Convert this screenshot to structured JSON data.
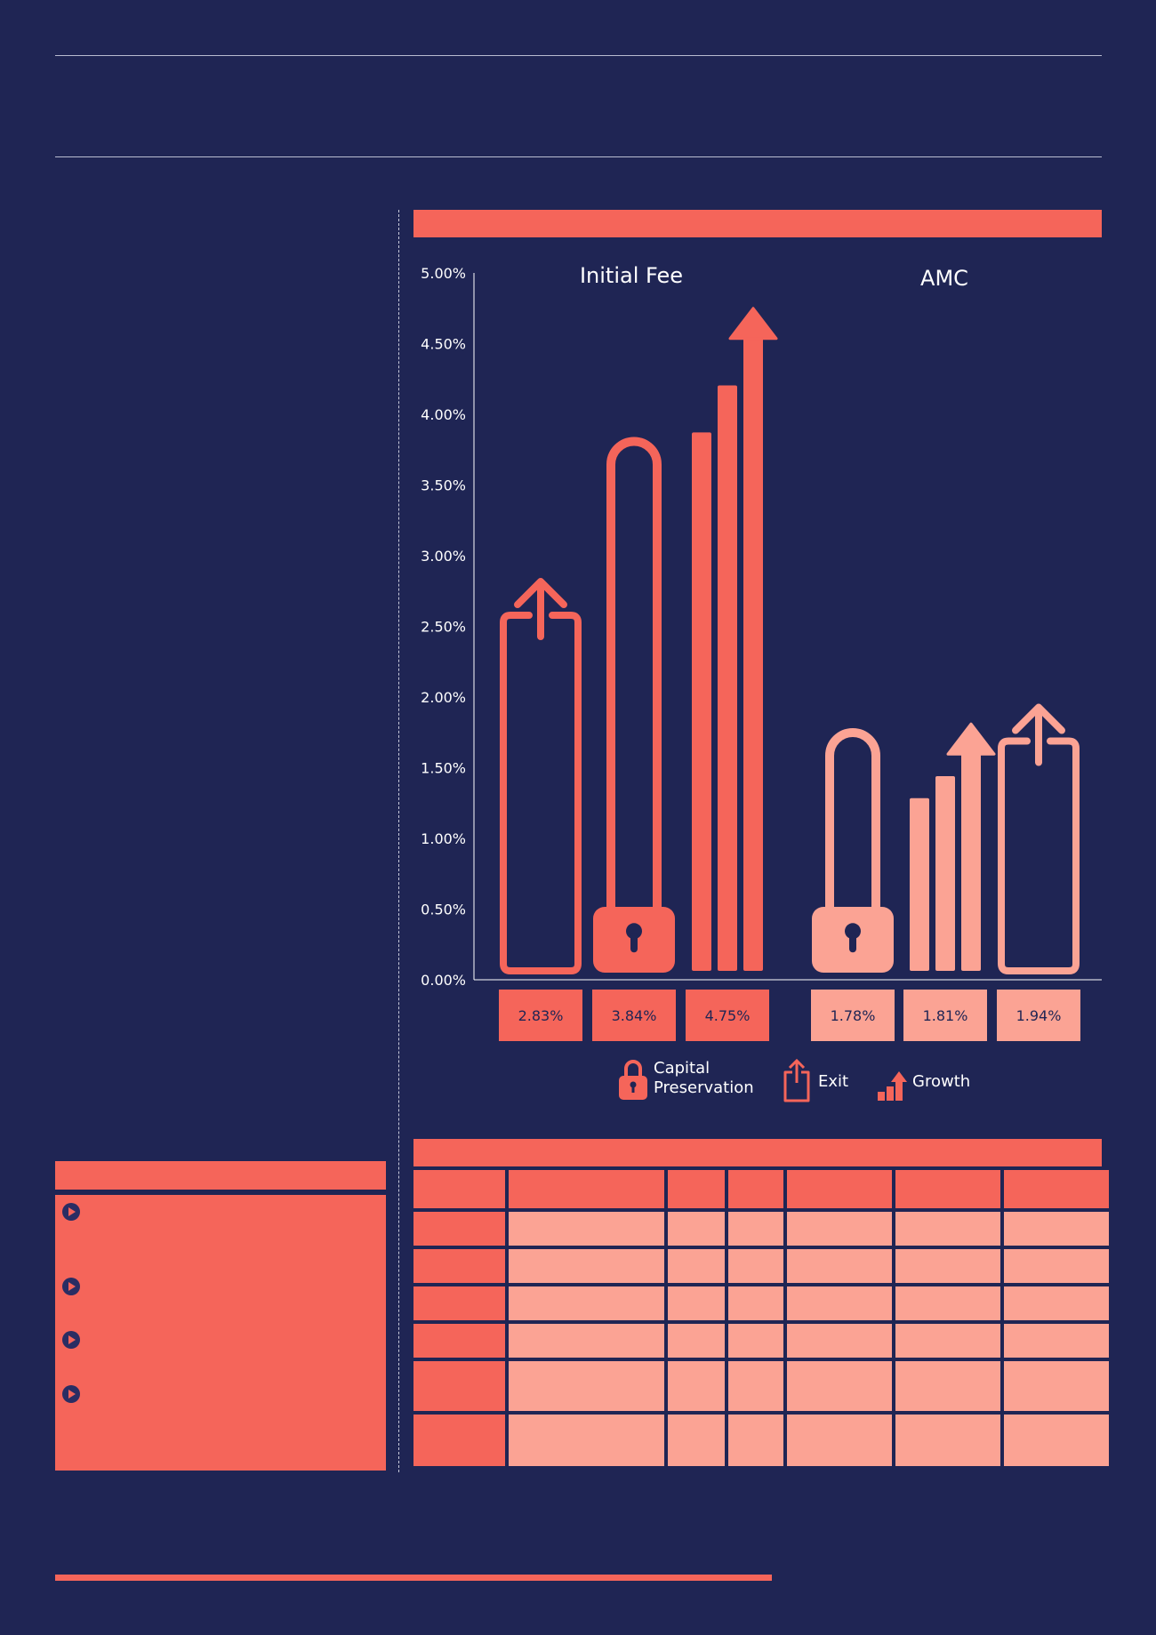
{
  "chart_data": {
    "type": "bar",
    "y_axis": {
      "min": 0,
      "max": 5,
      "unit": "%",
      "tick_labels": [
        "0.00%",
        "0.50%",
        "1.00%",
        "1.50%",
        "2.00%",
        "2.50%",
        "3.00%",
        "3.50%",
        "4.00%",
        "4.50%",
        "5.00%"
      ]
    },
    "groups": [
      {
        "title": "Initial Fee",
        "color": "#f5655a",
        "bars": [
          {
            "series": "Exit",
            "icon": "exit-icon",
            "value": 2.83,
            "label": "2.83%"
          },
          {
            "series": "Capital Preservation",
            "icon": "lock-icon",
            "value": 3.84,
            "label": "3.84%"
          },
          {
            "series": "Growth",
            "icon": "growth-icon",
            "value": 4.75,
            "label": "4.75%"
          }
        ]
      },
      {
        "title": "AMC",
        "color": "#fba394",
        "bars": [
          {
            "series": "Capital Preservation",
            "icon": "lock-icon",
            "value": 1.78,
            "label": "1.78%"
          },
          {
            "series": "Growth",
            "icon": "growth-icon",
            "value": 1.81,
            "label": "1.81%"
          },
          {
            "series": "Exit",
            "icon": "exit-icon",
            "value": 1.94,
            "label": "1.94%"
          }
        ]
      }
    ],
    "legend": [
      {
        "icon": "lock-icon",
        "label_lines": [
          "Capital",
          "Preservation"
        ]
      },
      {
        "icon": "exit-icon",
        "label_lines": [
          "Exit"
        ]
      },
      {
        "icon": "growth-icon",
        "label_lines": [
          "Growth"
        ]
      }
    ],
    "colors": {
      "background": "#1f2554",
      "primary": "#f5655a",
      "light": "#fba394",
      "text": "#ffffff"
    }
  }
}
